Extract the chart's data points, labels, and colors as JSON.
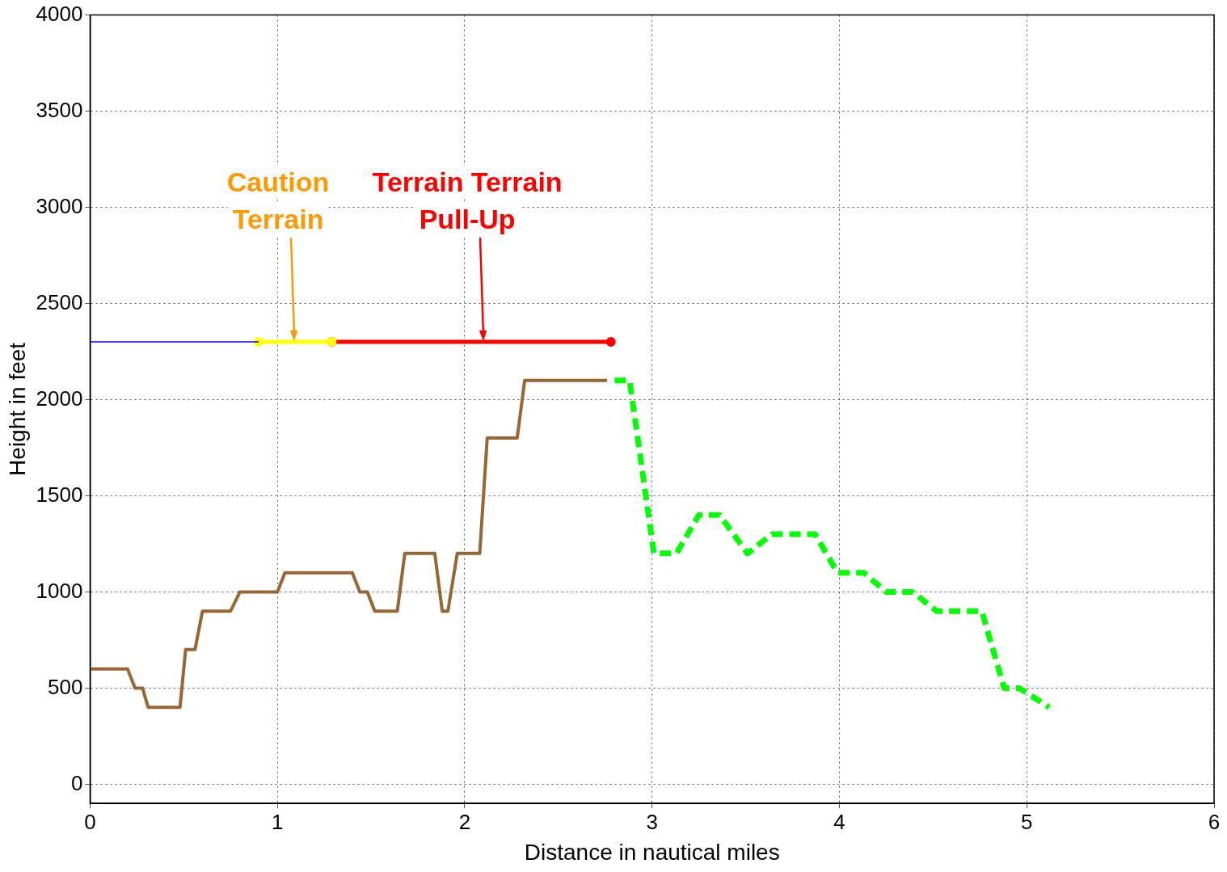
{
  "chart_data": {
    "type": "line",
    "xlabel": "Distance in nautical miles",
    "ylabel": "Height in feet",
    "xlim": [
      0,
      6
    ],
    "xticks": [
      0,
      1,
      2,
      3,
      4,
      5,
      6
    ],
    "ylim": [
      -100,
      4000
    ],
    "yticks": [
      0,
      500,
      1000,
      1500,
      2000,
      2500,
      3000,
      3500,
      4000
    ],
    "grid": true,
    "legend": false,
    "series": [
      {
        "color": "#996633",
        "line_style": "solid",
        "marker": "none",
        "x": [
          0,
          0.2,
          0.24,
          0.28,
          0.31,
          0.48,
          0.51,
          0.56,
          0.6,
          0.75,
          0.8,
          1.0,
          1.04,
          1.4,
          1.44,
          1.48,
          1.52,
          1.64,
          1.68,
          1.84,
          1.88,
          1.91,
          1.96,
          2.08,
          2.12,
          2.28,
          2.32,
          2.76
        ],
        "values": [
          600,
          600,
          500,
          500,
          400,
          400,
          700,
          700,
          900,
          900,
          1000,
          1000,
          1100,
          1100,
          1000,
          1000,
          900,
          900,
          1200,
          1200,
          900,
          900,
          1200,
          1200,
          1800,
          1800,
          2100,
          2100
        ]
      },
      {
        "color": "#00ff00",
        "line_style": "dashed",
        "marker": "none",
        "x": [
          2.8,
          2.88,
          3.01,
          3.13,
          3.25,
          3.36,
          3.51,
          3.64,
          3.87,
          3.99,
          4.13,
          4.25,
          4.39,
          4.52,
          4.76,
          4.88,
          4.96,
          5.12
        ],
        "values": [
          2100,
          2100,
          1200,
          1200,
          1400,
          1400,
          1200,
          1300,
          1300,
          1100,
          1100,
          1000,
          1000,
          900,
          900,
          500,
          500,
          400
        ]
      },
      {
        "color": "#0000ff",
        "line_style": "solid",
        "marker": "none",
        "x": [
          0,
          0.9
        ],
        "values": [
          2300,
          2300
        ]
      },
      {
        "color": "#ffff00",
        "line_style": "solid",
        "marker": "circle",
        "x": [
          0.9,
          1.29
        ],
        "values": [
          2300,
          2300
        ]
      },
      {
        "color": "#ff0000",
        "line_style": "solid",
        "marker": "circle",
        "x": [
          1.29,
          2.78
        ],
        "values": [
          2300,
          2300
        ]
      }
    ],
    "annotations": [
      {
        "text": "Caution\nTerrain",
        "x": 1.09,
        "y": 2300
      },
      {
        "text": "Terrain Terrain\nPull-Up",
        "x": 2.1,
        "y": 2300
      }
    ]
  }
}
